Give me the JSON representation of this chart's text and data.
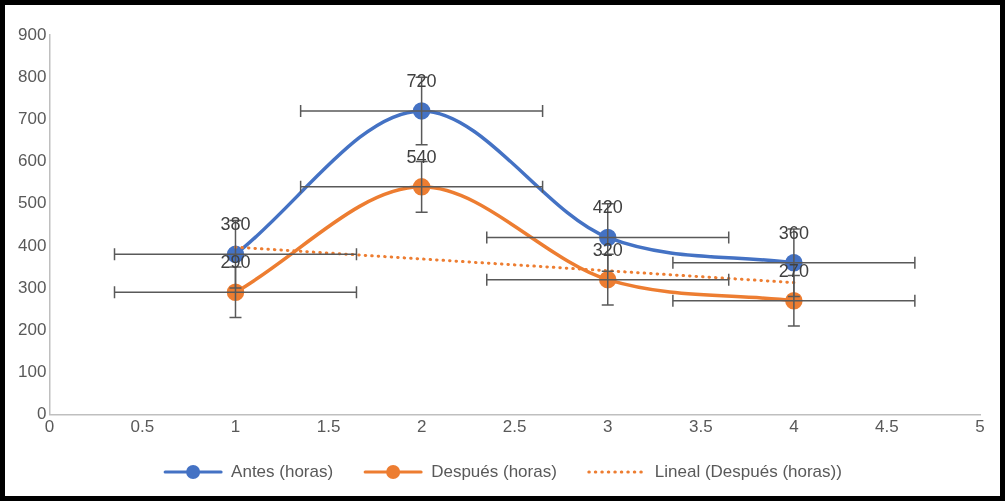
{
  "chart_data": {
    "type": "line",
    "x": [
      1,
      2,
      3,
      4
    ],
    "series": [
      {
        "name": "Antes (horas)",
        "color": "#4472c4",
        "values": [
          380,
          720,
          420,
          360
        ],
        "errors": [
          80,
          80,
          80,
          80
        ],
        "xerrors": [
          0.65,
          0.65,
          0.65,
          0.65
        ],
        "data_labels": true,
        "marker": "circle",
        "line_style": "solid"
      },
      {
        "name": "Después (horas)",
        "color": "#ed7d31",
        "values": [
          290,
          540,
          320,
          270
        ],
        "errors": [
          60,
          60,
          60,
          60
        ],
        "xerrors": [
          0.65,
          0.65,
          0.65,
          0.65
        ],
        "data_labels": true,
        "marker": "circle",
        "line_style": "solid"
      },
      {
        "name": "Lineal (Después (horas))",
        "type": "line",
        "color": "#ed7d31",
        "x": [
          1,
          4
        ],
        "values": [
          397,
          313
        ],
        "marker": "none",
        "line_style": "dotted"
      }
    ],
    "xlim": [
      0,
      5
    ],
    "xticks": [
      0,
      0.5,
      1,
      1.5,
      2,
      2.5,
      3,
      3.5,
      4,
      4.5,
      5
    ],
    "ylim": [
      0,
      900
    ],
    "yticks": [
      0,
      100,
      200,
      300,
      400,
      500,
      600,
      700,
      800,
      900
    ],
    "grid": false,
    "legend": "bottom"
  }
}
